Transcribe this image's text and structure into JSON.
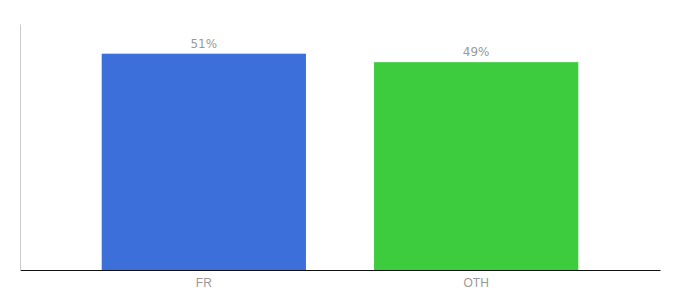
{
  "chart_data": {
    "type": "bar",
    "categories": [
      "FR",
      "OTH"
    ],
    "values": [
      51,
      49
    ],
    "value_labels": [
      "51%",
      "49%"
    ],
    "colors": [
      "#3d6fdb",
      "#3dcc3d"
    ],
    "ylim": [
      0,
      58
    ],
    "grid": false,
    "data_labels": true,
    "tick_labels": "x"
  }
}
